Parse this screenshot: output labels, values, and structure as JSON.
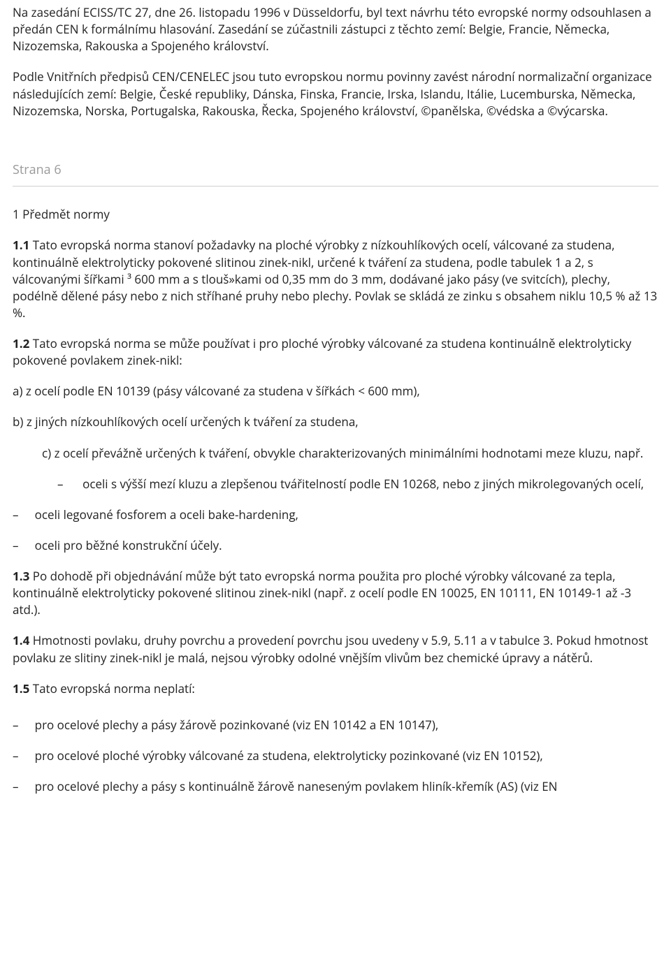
{
  "intro": {
    "p1": "Na zasedání ECISS/TC 27, dne 26. listopadu 1996 v Düsseldorfu, byl text návrhu této evropské normy odsouhlasen a předán CEN k formálnímu hlasování. Zasedání se zúčastnili zástupci z těchto zemí: Belgie, Francie, Německa, Nizozemska, Rakouska a Spojeného království.",
    "p2": "Podle Vnitřních předpisů CEN/CENELEC jsou tuto evropskou normu povinny zavést národní normalizační organizace následujících zemí: Belgie, České republiky, Dánska, Finska, Francie, Irska, Islandu, Itálie, Lucemburska, Německa, Nizozemska, Norska, Portugalska, Rakouska, Řecka, Spojeného království, ©panělska, ©védska a ©výcarska."
  },
  "page_marker": "Strana 6",
  "section_heading": "1 Předmět normy",
  "clauses": {
    "c1_1_lead": "1.1",
    "c1_1_text": " Tato evropská norma stanoví požadavky na ploché výrobky z nízkouhlíkových ocelí, válcované za studena, kontinuálně elektrolyticky pokovené slitinou zinek-nikl, určené k tváření za studena, podle tabulek 1 a 2, s válcovanými šířkami ³ 600 mm a s tlouš»kami od 0,35 mm do 3 mm, dodávané jako pásy (ve svitcích), plechy, podélně dělené pásy nebo z nich stříhané pruhy nebo plechy. Povlak se skládá ze zinku s obsahem niklu 10,5 % až 13 %.",
    "c1_2_lead": "1.2",
    "c1_2_text": " Tato evropská norma se může používat i pro ploché výrobky válcované za studena kontinuálně elektrolyticky pokovené povlakem zinek-nikl:",
    "a": "a)  z ocelí podle EN 10139 (pásy válcované za studena v šířkách < 600 mm),",
    "b": "b)  z jiných nízkouhlíkových ocelí určených k tváření za studena,",
    "c": "c)    z ocelí převážně určených k tváření, obvykle charakterizovaných minimálními hodnotami meze kluzu, např.",
    "dash_c1": "oceli s výšší mezí kluzu a zlepšenou tvářitelností  podle EN 10268, nebo z jiných mikrolegovaných ocelí,",
    "dash_lvl1_1": "oceli legované fosforem a oceli bake-hardening,",
    "dash_lvl1_2": "oceli pro běžné konstrukční účely.",
    "c1_3_lead": "1.3",
    "c1_3_text": " Po dohodě při objednávání může být tato evropská norma použita pro ploché výrobky válcované za tepla, kontinuálně elektrolyticky pokovené slitinou zinek-nikl (např. z ocelí podle EN 10025, EN 10111, EN 10149-1 až -3 atd.).",
    "c1_4_lead": "1.4",
    "c1_4_text": " Hmotnosti povlaku, druhy povrchu a provedení povrchu jsou uvedeny v 5.9, 5.11 a v tabulce 3. Pokud hmotnost povlaku ze slitiny zinek-nikl je malá, nejsou výrobky odolné vnějším vlivům bez chemické úpravy a nátěrů.",
    "c1_5_lead": "1.5",
    "c1_5_text": " Tato evropská norma neplatí:",
    "dash_0_1": "pro ocelové plechy a pásy žárově pozinkované (viz EN 10142 a EN 10147),",
    "dash_0_2": "pro ocelové ploché výrobky válcované za studena, elektrolyticky pozinkované (viz EN 10152),",
    "dash_0_3": "pro ocelové plechy a pásy s kontinuálně žárově naneseným povlakem hliník-křemík (AS) (viz EN"
  }
}
